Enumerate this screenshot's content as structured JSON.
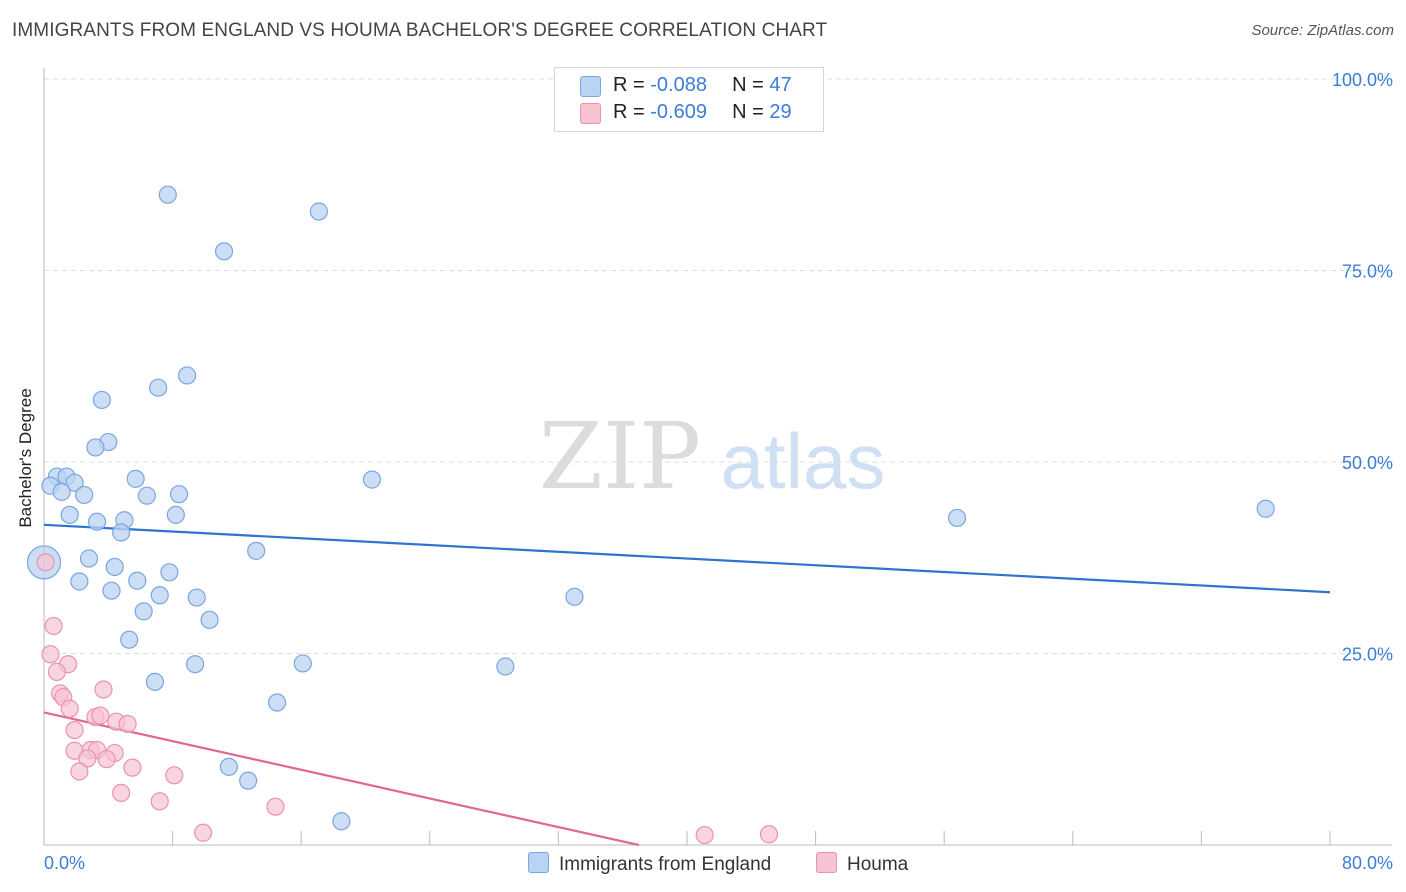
{
  "title": "IMMIGRANTS FROM ENGLAND VS HOUMA BACHELOR'S DEGREE CORRELATION CHART",
  "source": "Source: ZipAtlas.com",
  "watermark": {
    "zip": "ZIP",
    "atlas": "atlas"
  },
  "colors": {
    "blue_fill": "#b9d3f3",
    "blue_stroke": "#7aa6dc",
    "blue_line": "#2f74cc",
    "pink_fill": "#f6c3d3",
    "pink_stroke": "#ea93ae",
    "pink_line": "#e2668f",
    "tick_label": "#3b7dd8",
    "grid": "#dddddd"
  },
  "stats": {
    "blue": {
      "r_label": "R = ",
      "r_value": "-0.088",
      "n_label": "N = ",
      "n_value": "47"
    },
    "pink": {
      "r_label": "R = ",
      "r_value": "-0.609",
      "n_label": "N = ",
      "n_value": "29"
    }
  },
  "legend": {
    "blue": "Immigrants from England",
    "pink": "Houma"
  },
  "chart_data": {
    "type": "scatter",
    "title": "IMMIGRANTS FROM ENGLAND VS HOUMA BACHELOR'S DEGREE CORRELATION CHART",
    "xlabel": "",
    "ylabel": "Bachelor's Degree",
    "xlim": [
      0,
      80
    ],
    "ylim": [
      0,
      100
    ],
    "x_tick_labels": [
      "0.0%",
      "80.0%"
    ],
    "y_ticks": [
      25,
      50,
      75,
      100
    ],
    "y_tick_labels": [
      "25.0%",
      "50.0%",
      "75.0%",
      "100.0%"
    ],
    "series": [
      {
        "name": "Immigrants from England",
        "color": "blue",
        "points": [
          [
            7.7,
            84.9
          ],
          [
            17.1,
            82.7
          ],
          [
            11.2,
            77.5
          ],
          [
            8.9,
            61.3
          ],
          [
            7.1,
            59.7
          ],
          [
            3.6,
            58.1
          ],
          [
            4.0,
            52.6
          ],
          [
            3.2,
            51.9
          ],
          [
            0.8,
            48.1
          ],
          [
            1.4,
            48.1
          ],
          [
            1.9,
            47.3
          ],
          [
            0.4,
            46.9
          ],
          [
            1.1,
            46.1
          ],
          [
            2.5,
            45.7
          ],
          [
            5.7,
            47.8
          ],
          [
            6.4,
            45.6
          ],
          [
            8.4,
            45.8
          ],
          [
            20.4,
            47.7
          ],
          [
            1.6,
            43.1
          ],
          [
            3.3,
            42.2
          ],
          [
            5.0,
            42.4
          ],
          [
            4.8,
            40.8
          ],
          [
            8.2,
            43.1
          ],
          [
            13.2,
            38.4
          ],
          [
            2.8,
            37.4
          ],
          [
            4.4,
            36.3
          ],
          [
            7.8,
            35.6
          ],
          [
            2.2,
            34.4
          ],
          [
            5.8,
            34.5
          ],
          [
            4.2,
            33.2
          ],
          [
            7.2,
            32.6
          ],
          [
            9.5,
            32.3
          ],
          [
            6.2,
            30.5
          ],
          [
            10.3,
            29.4
          ],
          [
            5.3,
            26.8
          ],
          [
            9.4,
            23.6
          ],
          [
            16.1,
            23.7
          ],
          [
            28.7,
            23.3
          ],
          [
            6.9,
            21.3
          ],
          [
            14.5,
            18.6
          ],
          [
            11.5,
            10.2
          ],
          [
            12.7,
            8.4
          ],
          [
            18.5,
            3.1
          ],
          [
            33.0,
            32.4
          ],
          [
            56.8,
            42.7
          ],
          [
            76.0,
            43.9
          ],
          [
            0.0,
            36.9
          ]
        ],
        "bubble_sizes": [
          12,
          12,
          12,
          12,
          12,
          12,
          12,
          12,
          12,
          12,
          12,
          12,
          12,
          12,
          12,
          12,
          12,
          12,
          12,
          12,
          12,
          12,
          12,
          12,
          12,
          12,
          12,
          12,
          12,
          12,
          12,
          12,
          12,
          12,
          12,
          12,
          12,
          12,
          12,
          12,
          12,
          12,
          12,
          12,
          12,
          12,
          20
        ],
        "trend": {
          "x": [
            0,
            80
          ],
          "y": [
            41.8,
            33.0
          ]
        }
      },
      {
        "name": "Houma",
        "color": "pink",
        "points": [
          [
            0.1,
            36.9
          ],
          [
            0.6,
            28.6
          ],
          [
            0.4,
            24.9
          ],
          [
            1.5,
            23.6
          ],
          [
            0.8,
            22.6
          ],
          [
            1.0,
            19.8
          ],
          [
            1.2,
            19.3
          ],
          [
            3.7,
            20.3
          ],
          [
            1.6,
            17.8
          ],
          [
            3.2,
            16.7
          ],
          [
            3.5,
            16.9
          ],
          [
            4.5,
            16.1
          ],
          [
            5.2,
            15.8
          ],
          [
            1.9,
            15.0
          ],
          [
            1.9,
            12.3
          ],
          [
            2.9,
            12.4
          ],
          [
            3.3,
            12.4
          ],
          [
            4.4,
            12.0
          ],
          [
            2.7,
            11.3
          ],
          [
            3.9,
            11.2
          ],
          [
            5.5,
            10.1
          ],
          [
            2.2,
            9.6
          ],
          [
            8.1,
            9.1
          ],
          [
            4.8,
            6.8
          ],
          [
            7.2,
            5.7
          ],
          [
            14.4,
            5.0
          ],
          [
            9.9,
            1.6
          ],
          [
            41.1,
            1.3
          ],
          [
            45.1,
            1.4
          ]
        ],
        "trend": {
          "x": [
            0,
            37
          ],
          "y": [
            17.3,
            0
          ]
        }
      }
    ]
  }
}
